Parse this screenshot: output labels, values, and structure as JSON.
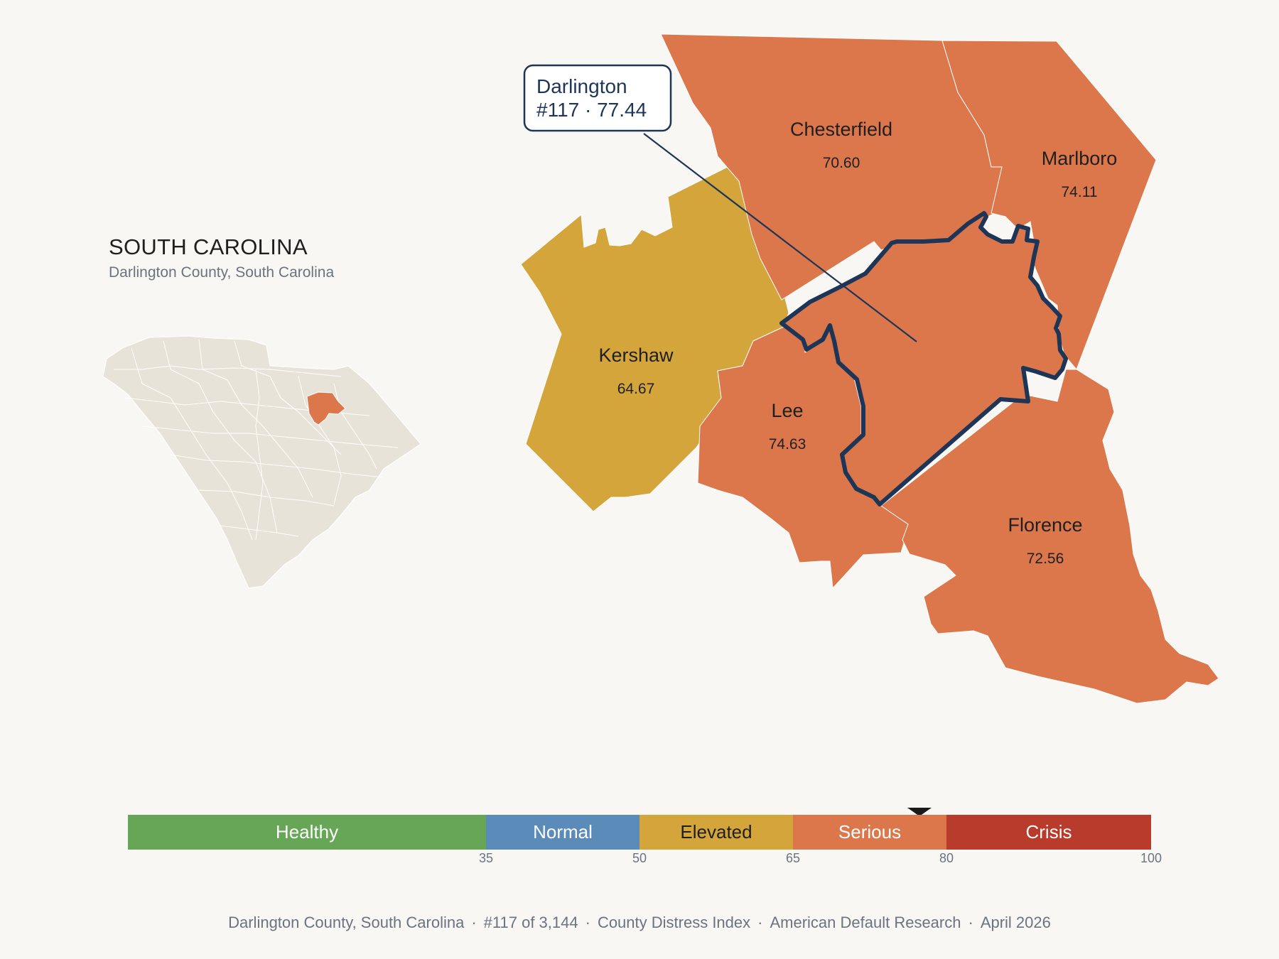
{
  "header": {
    "state_title": "SOUTH CAROLINA",
    "subtitle": "Darlington County, South Carolina"
  },
  "callout": {
    "name": "Darlington",
    "rank_score": "#117 · 77.44"
  },
  "counties": [
    {
      "name": "Chesterfield",
      "score": "70.60",
      "category": "Serious"
    },
    {
      "name": "Marlboro",
      "score": "74.11",
      "category": "Serious"
    },
    {
      "name": "Kershaw",
      "score": "64.67",
      "category": "Elevated"
    },
    {
      "name": "Lee",
      "score": "74.63",
      "category": "Serious"
    },
    {
      "name": "Florence",
      "score": "72.56",
      "category": "Serious"
    },
    {
      "name": "Darlington",
      "score": "77.44",
      "category": "Serious",
      "highlighted": true
    }
  ],
  "scale": {
    "segments": [
      {
        "label": "Healthy",
        "from": 0,
        "to": 35,
        "color": "#67a657",
        "text_color": "#ffffff"
      },
      {
        "label": "Normal",
        "from": 35,
        "to": 50,
        "color": "#5b8bb9",
        "text_color": "#ffffff"
      },
      {
        "label": "Elevated",
        "from": 50,
        "to": 65,
        "color": "#d3a53b",
        "text_color": "#1f1f1f"
      },
      {
        "label": "Serious",
        "from": 65,
        "to": 80,
        "color": "#db774b",
        "text_color": "#ffffff"
      },
      {
        "label": "Crisis",
        "from": 80,
        "to": 100,
        "color": "#b83b2b",
        "text_color": "#ffffff"
      }
    ],
    "ticks": [
      "35",
      "50",
      "65",
      "80",
      "100"
    ],
    "marker_value": 77.44
  },
  "footer": {
    "county": "Darlington County, South Carolina",
    "rank": "#117 of 3,144",
    "index": "County Distress Index",
    "source": "American Default Research",
    "date": "April 2026"
  },
  "colors": {
    "serious": "#db774b",
    "elevated": "#d3a53b",
    "highlight_outline": "#1d3557",
    "inset_land": "#e8e3d8",
    "background": "#f9f7f3"
  }
}
